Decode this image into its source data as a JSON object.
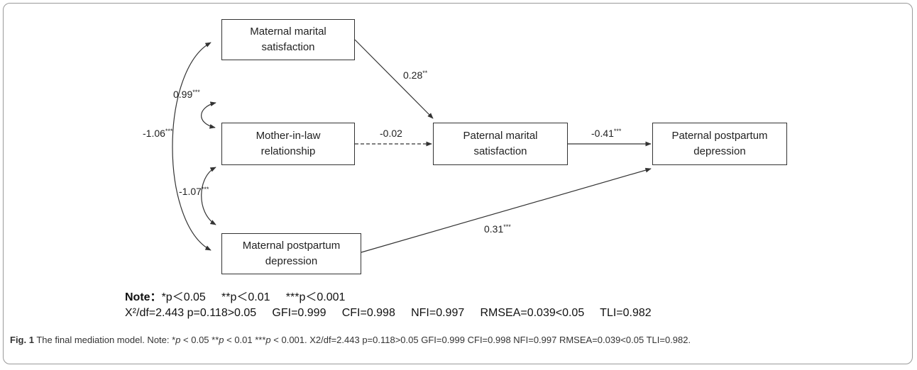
{
  "diagram": {
    "nodes": {
      "mms": [
        "Maternal marital",
        "satisfaction"
      ],
      "mil": [
        "Mother-in-law",
        "relationship"
      ],
      "mpd": [
        "Maternal postpartum",
        "depression"
      ],
      "pms": [
        "Paternal marital",
        "satisfaction"
      ],
      "ppd": [
        "Paternal postpartum",
        "depression"
      ]
    },
    "paths": [
      {
        "from": "Maternal marital satisfaction",
        "to": "Paternal marital satisfaction",
        "coef": "0.28",
        "sig": "**",
        "style": "solid"
      },
      {
        "from": "Mother-in-law relationship",
        "to": "Paternal marital satisfaction",
        "coef": "-0.02",
        "sig": "",
        "style": "dashed"
      },
      {
        "from": "Paternal marital satisfaction",
        "to": "Paternal postpartum depression",
        "coef": "-0.41",
        "sig": "***",
        "style": "solid"
      },
      {
        "from": "Maternal postpartum depression",
        "to": "Paternal postpartum depression",
        "coef": "0.31",
        "sig": "***",
        "style": "solid"
      }
    ],
    "covariances": [
      {
        "a": "Maternal marital satisfaction",
        "b": "Mother-in-law relationship",
        "coef": "0.99",
        "sig": "***"
      },
      {
        "a": "Mother-in-law relationship",
        "b": "Maternal postpartum depression",
        "coef": "-1.07",
        "sig": "***"
      },
      {
        "a": "Maternal marital satisfaction",
        "b": "Maternal postpartum depression",
        "coef": "-1.06",
        "sig": "***"
      }
    ],
    "line_color": "#333333"
  },
  "note": {
    "label": "Note：",
    "sig_levels": "*p＜0.05     **p＜0.01     ***p＜0.001",
    "fit_indices": "X²/df=2.443 p=0.118>0.05     GFI=0.999     CFI=0.998     NFI=0.997     RMSEA=0.039<0.05     TLI=0.982"
  },
  "caption": {
    "fig_label": "Fig. 1",
    "text_before": "The final mediation model. Note: ",
    "p1": "p",
    "t1": " < 0.05 **",
    "p2": "p",
    "t2": " < 0.01 ***",
    "p3": "p",
    "text_after": " < 0.001. X2/df=2.443 p=0.118>0.05 GFI=0.999 CFI=0.998 NFI=0.997 RMSEA=0.039<0.05 TLI=0.982."
  }
}
